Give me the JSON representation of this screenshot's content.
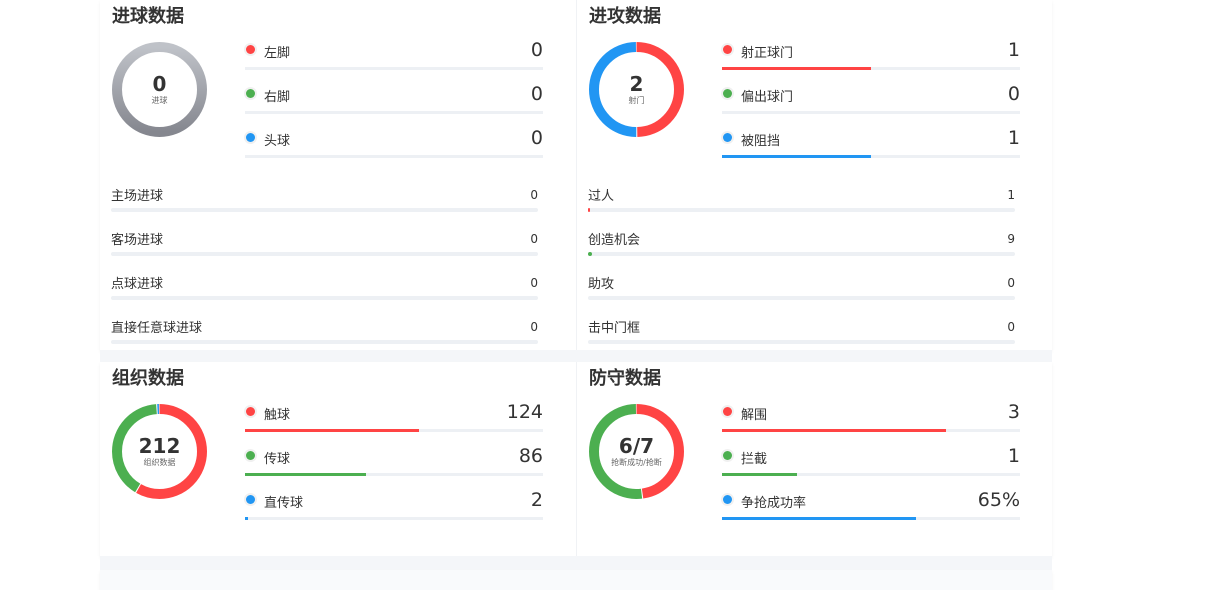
{
  "colors": {
    "red": "#ff4444",
    "green": "#4caf50",
    "blue": "#2196f3",
    "gray": "#9a9ca4",
    "track": "#edf0f4"
  },
  "cards": [
    {
      "title": "进球数据",
      "center_value": "0",
      "center_label": "进球",
      "donut": [],
      "legend": [
        {
          "label": "左脚",
          "value": "0",
          "color": "#ff4444",
          "fill": 0
        },
        {
          "label": "右脚",
          "value": "0",
          "color": "#4caf50",
          "fill": 0
        },
        {
          "label": "头球",
          "value": "0",
          "color": "#2196f3",
          "fill": 0
        }
      ],
      "rows": [
        {
          "label": "主场进球",
          "value": "0",
          "fill": 0,
          "color": "#ff4444"
        },
        {
          "label": "客场进球",
          "value": "0",
          "fill": 0,
          "color": "#4caf50"
        },
        {
          "label": "点球进球",
          "value": "0",
          "fill": 0,
          "color": "#2196f3"
        },
        {
          "label": "直接任意球进球",
          "value": "0",
          "fill": 0,
          "color": "#ff4444"
        }
      ]
    },
    {
      "title": "进攻数据",
      "center_value": "2",
      "center_label": "射门",
      "donut": [
        {
          "value": 1,
          "color": "#ff4444"
        },
        {
          "value": 0,
          "color": "#4caf50"
        },
        {
          "value": 1,
          "color": "#2196f3"
        }
      ],
      "legend": [
        {
          "label": "射正球门",
          "value": "1",
          "color": "#ff4444",
          "fill": 0.5
        },
        {
          "label": "偏出球门",
          "value": "0",
          "color": "#4caf50",
          "fill": 0
        },
        {
          "label": "被阻挡",
          "value": "1",
          "color": "#2196f3",
          "fill": 0.5
        }
      ],
      "rows": [
        {
          "label": "过人",
          "value": "1",
          "fill": 0.005,
          "color": "#ff4444"
        },
        {
          "label": "创造机会",
          "value": "9",
          "fill": 0.01,
          "color": "#4caf50"
        },
        {
          "label": "助攻",
          "value": "0",
          "fill": 0,
          "color": "#2196f3"
        },
        {
          "label": "击中门框",
          "value": "0",
          "fill": 0,
          "color": "#ff4444"
        }
      ]
    },
    {
      "title": "组织数据",
      "center_value": "212",
      "center_label": "组织数据",
      "donut": [
        {
          "value": 124,
          "color": "#ff4444"
        },
        {
          "value": 86,
          "color": "#4caf50"
        },
        {
          "value": 2,
          "color": "#2196f3"
        }
      ],
      "legend": [
        {
          "label": "触球",
          "value": "124",
          "color": "#ff4444",
          "fill": 0.585
        },
        {
          "label": "传球",
          "value": "86",
          "color": "#4caf50",
          "fill": 0.406
        },
        {
          "label": "直传球",
          "value": "2",
          "color": "#2196f3",
          "fill": 0.01
        }
      ],
      "rows": []
    },
    {
      "title": "防守数据",
      "center_value": "6/7",
      "center_label": "抢断成功/抢断",
      "donut": [
        {
          "value": 0.48,
          "color": "#ff4444"
        },
        {
          "value": 0.52,
          "color": "#4caf50"
        }
      ],
      "legend": [
        {
          "label": "解围",
          "value": "3",
          "color": "#ff4444",
          "fill": 0.75
        },
        {
          "label": "拦截",
          "value": "1",
          "color": "#4caf50",
          "fill": 0.25
        },
        {
          "label": "争抢成功率",
          "value": "65%",
          "color": "#2196f3",
          "fill": 0.65
        }
      ],
      "rows": []
    }
  ]
}
